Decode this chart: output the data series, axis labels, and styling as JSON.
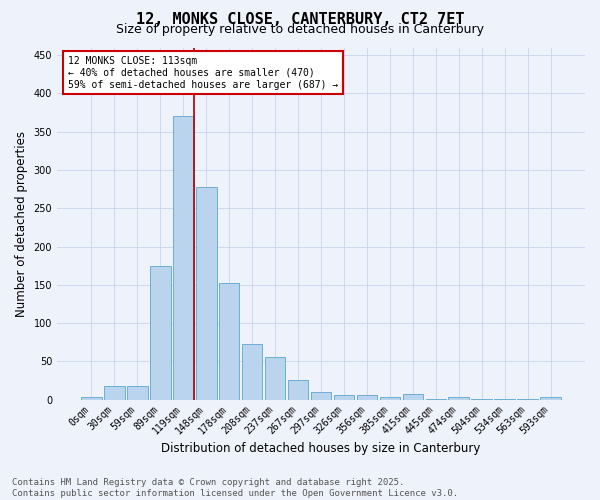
{
  "title1": "12, MONKS CLOSE, CANTERBURY, CT2 7ET",
  "title2": "Size of property relative to detached houses in Canterbury",
  "xlabel": "Distribution of detached houses by size in Canterbury",
  "ylabel": "Number of detached properties",
  "tick_labels": [
    "0sqm",
    "30sqm",
    "59sqm",
    "89sqm",
    "119sqm",
    "148sqm",
    "178sqm",
    "208sqm",
    "237sqm",
    "267sqm",
    "297sqm",
    "326sqm",
    "356sqm",
    "385sqm",
    "415sqm",
    "445sqm",
    "474sqm",
    "504sqm",
    "534sqm",
    "563sqm",
    "593sqm"
  ],
  "values": [
    3,
    18,
    18,
    175,
    370,
    278,
    152,
    72,
    55,
    25,
    10,
    6,
    6,
    4,
    7,
    1,
    4,
    1,
    1,
    1,
    3
  ],
  "bar_color": "#bad4ed",
  "bar_edge_color": "#6aaed6",
  "ylim": [
    0,
    460
  ],
  "yticks": [
    0,
    50,
    100,
    150,
    200,
    250,
    300,
    350,
    400,
    450
  ],
  "red_line_x": 4.45,
  "annotation_text": "12 MONKS CLOSE: 113sqm\n← 40% of detached houses are smaller (470)\n59% of semi-detached houses are larger (687) →",
  "annotation_box_color": "#ffffff",
  "annotation_box_edge": "#cc0000",
  "footer_text": "Contains HM Land Registry data © Crown copyright and database right 2025.\nContains public sector information licensed under the Open Government Licence v3.0.",
  "background_color": "#eef2fb",
  "grid_color": "#c8d4ec",
  "title1_fontsize": 11,
  "title2_fontsize": 9,
  "axis_label_fontsize": 8.5,
  "tick_fontsize": 7,
  "footer_fontsize": 6.5,
  "annotation_fontsize": 7
}
